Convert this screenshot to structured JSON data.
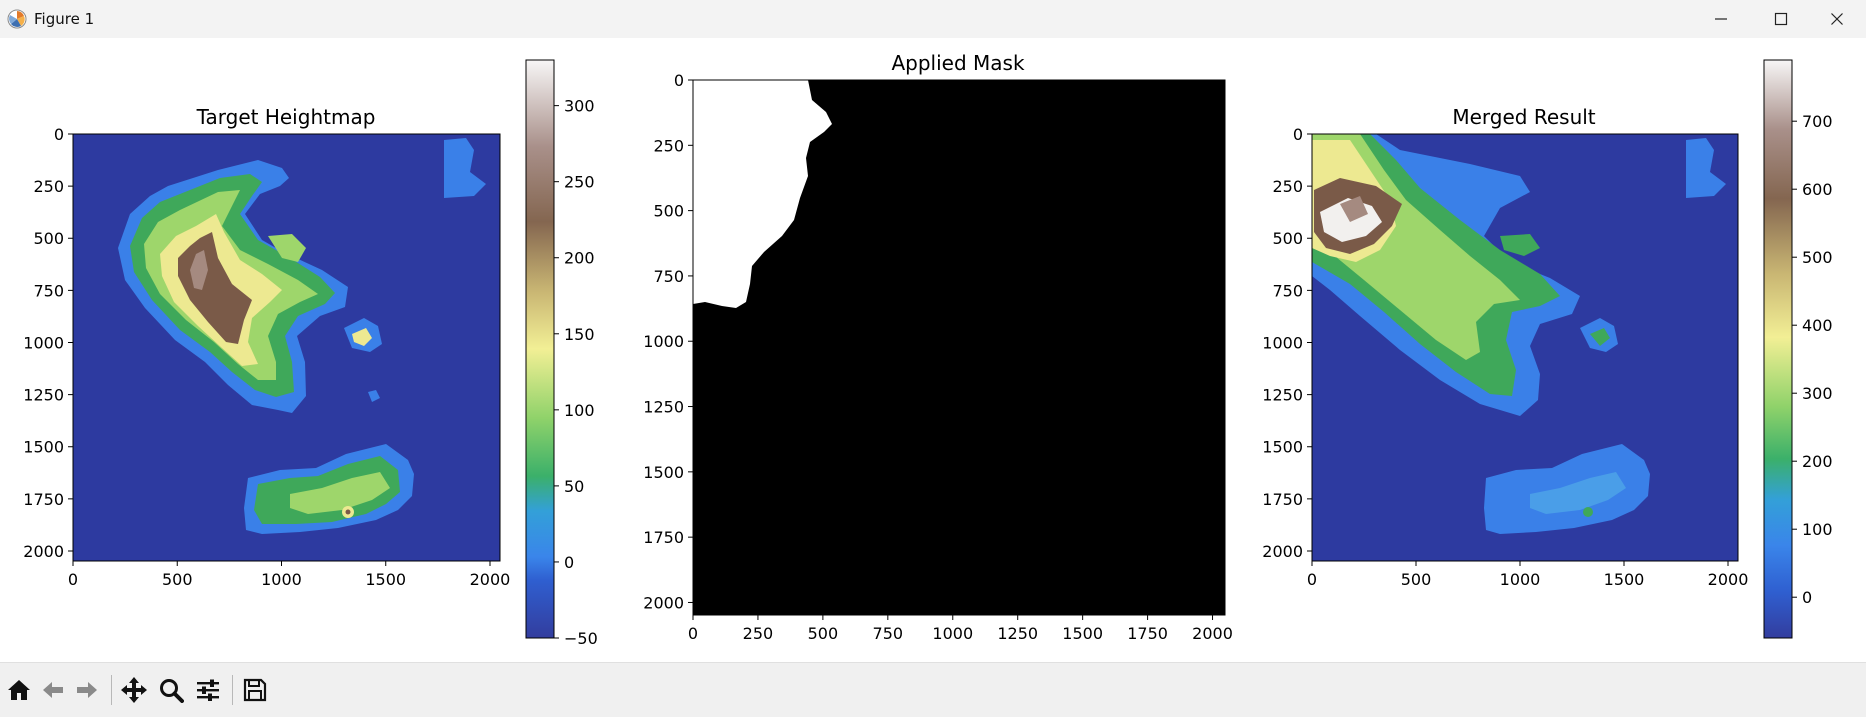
{
  "window": {
    "title": "Figure 1",
    "controls": [
      "minimize-icon",
      "maximize-icon",
      "close-icon"
    ]
  },
  "colors": {
    "ocean": "#2d3aa0",
    "shallow": "#3a80e8",
    "lowland": "#3fa85a",
    "hills": "#9ed66b",
    "plateau": "#ede991",
    "mountain": "#7a5a48",
    "peak": "#f2f0ee",
    "mask_on": "#ffffff",
    "mask_off": "#000000"
  },
  "toolbar": {
    "buttons": [
      "home-icon",
      "back-icon",
      "forward-icon",
      "pan-icon",
      "zoom-icon",
      "configure-icon",
      "save-icon"
    ]
  },
  "chart_data": [
    {
      "type": "heatmap",
      "title": "Target Heightmap",
      "xlabel": "",
      "ylabel": "",
      "x_ticks": [
        0,
        500,
        1000,
        1500,
        2000
      ],
      "y_ticks": [
        0,
        250,
        500,
        750,
        1000,
        1250,
        1500,
        1750,
        2000
      ],
      "xlim": [
        0,
        2048
      ],
      "ylim": [
        2048,
        0
      ],
      "colormap": "terrain",
      "colorbar": {
        "ticks": [
          -50,
          0,
          50,
          100,
          150,
          200,
          250,
          300
        ],
        "range": [
          -50,
          330
        ]
      },
      "grid": false
    },
    {
      "type": "heatmap",
      "title": "Applied Mask",
      "xlabel": "",
      "ylabel": "",
      "x_ticks": [
        0,
        250,
        500,
        750,
        1000,
        1250,
        1500,
        1750,
        2000
      ],
      "y_ticks": [
        0,
        250,
        500,
        750,
        1000,
        1250,
        1500,
        1750,
        2000
      ],
      "xlim": [
        0,
        2048
      ],
      "ylim": [
        2048,
        0
      ],
      "colormap": "gray",
      "colorbar": null,
      "grid": false
    },
    {
      "type": "heatmap",
      "title": "Merged Result",
      "xlabel": "",
      "ylabel": "",
      "x_ticks": [
        0,
        500,
        1000,
        1500,
        2000
      ],
      "y_ticks": [
        0,
        250,
        500,
        750,
        1000,
        1250,
        1500,
        1750,
        2000
      ],
      "xlim": [
        0,
        2048
      ],
      "ylim": [
        2048,
        0
      ],
      "colormap": "terrain",
      "colorbar": {
        "ticks": [
          0,
          100,
          200,
          300,
          400,
          500,
          600,
          700
        ],
        "range": [
          -60,
          790
        ]
      },
      "grid": false
    }
  ]
}
